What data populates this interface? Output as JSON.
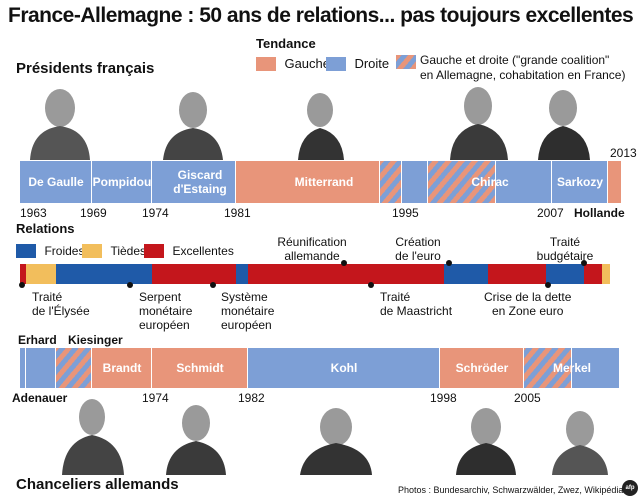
{
  "title": "France-Allemagne : 50 ans de relations... pas toujours excellentes",
  "legend_trend": {
    "heading": "Tendance",
    "left": "Gauche",
    "right": "Droite",
    "both": "Gauche et droite (\"grande coalition\" en Allemagne, cohabitation en France)",
    "both_line1": "Gauche et droite (\"grande coalition\"",
    "both_line2": "en Allemagne, cohabitation en France)"
  },
  "colors": {
    "left": "#e8957a",
    "right": "#7d9fd6",
    "froides": "#1f5aa8",
    "tiedes": "#f2be5c",
    "excellentes": "#c4161c"
  },
  "presidents": {
    "heading": "Présidents français",
    "names": [
      "De Gaulle",
      "Pompidou",
      "Giscard d'Estaing",
      "Mitterrand",
      "Chirac",
      "Sarkozy",
      "Hollande"
    ],
    "years": [
      "1963",
      "1969",
      "1974",
      "1981",
      "1995",
      "2007",
      "2013"
    ]
  },
  "relations": {
    "heading": "Relations",
    "legend": [
      "Froides",
      "Tièdes",
      "Excellentes"
    ],
    "events": [
      {
        "label": "Traité de l'Élysée",
        "l1": "Traité",
        "l2": "de l'Élysée"
      },
      {
        "label": "Serpent monétaire européen",
        "l1": "Serpent",
        "l2": "monétaire",
        "l3": "européen"
      },
      {
        "label": "Système monétaire européen",
        "l1": "Système",
        "l2": "monétaire",
        "l3": "européen"
      },
      {
        "label": "Réunification allemande",
        "l1": "Réunification",
        "l2": "allemande"
      },
      {
        "label": "Traité de Maastricht",
        "l1": "Traité",
        "l2": "de Maastricht"
      },
      {
        "label": "Création de l'euro",
        "l1": "Création",
        "l2": "de l'euro"
      },
      {
        "label": "Crise de la dette en Zone euro",
        "l1": "Crise de la dette",
        "l2": "en Zone euro"
      },
      {
        "label": "Traité budgétaire",
        "l1": "Traité",
        "l2": "budgétaire"
      }
    ]
  },
  "chancellors": {
    "heading": "Chanceliers allemands",
    "names": [
      "Adenauer",
      "Erhard",
      "Kiesinger",
      "Brandt",
      "Schmidt",
      "Kohl",
      "Schröder",
      "Merkel"
    ],
    "years": [
      "1974",
      "1982",
      "1998",
      "2005"
    ]
  },
  "credits": "Photos : Bundesarchiv, Schwarzwälder, Zwez, Wikipédia",
  "logo": "afp"
}
